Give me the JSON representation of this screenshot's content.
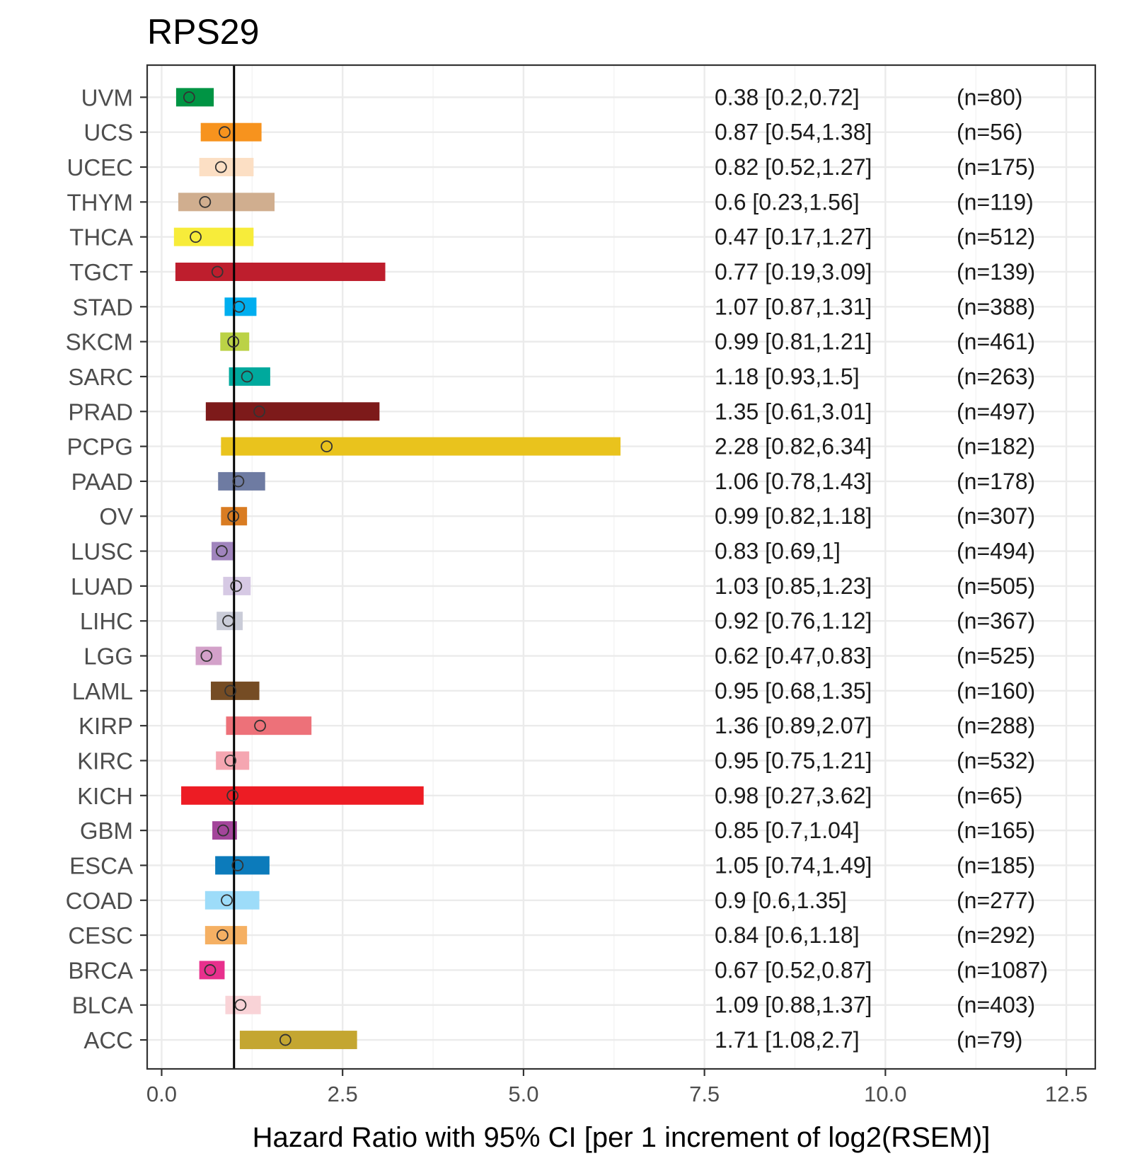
{
  "chart_data": {
    "type": "forest",
    "title": "RPS29",
    "xlabel": "Hazard Ratio with 95% CI [per 1 increment of log2(RSEM)]",
    "xlim": [
      -0.2,
      12.9
    ],
    "xticks": [
      0.0,
      2.5,
      5.0,
      7.5,
      10.0,
      12.5
    ],
    "xtick_labels": [
      "0.0",
      "2.5",
      "5.0",
      "7.5",
      "10.0",
      "12.5"
    ],
    "reference_line": 1,
    "grid": true,
    "rows": [
      {
        "category": "UVM",
        "hr": 0.38,
        "lower": 0.2,
        "upper": 0.72,
        "ci_text": "0.38 [0.2,0.72]",
        "n_text": "(n=80)",
        "color": "#009444"
      },
      {
        "category": "UCS",
        "hr": 0.87,
        "lower": 0.54,
        "upper": 1.38,
        "ci_text": "0.87 [0.54,1.38]",
        "n_text": "(n=56)",
        "color": "#F7931E"
      },
      {
        "category": "UCEC",
        "hr": 0.82,
        "lower": 0.52,
        "upper": 1.27,
        "ci_text": "0.82 [0.52,1.27]",
        "n_text": "(n=175)",
        "color": "#FCDFC4"
      },
      {
        "category": "THYM",
        "hr": 0.6,
        "lower": 0.23,
        "upper": 1.56,
        "ci_text": "0.6 [0.23,1.56]",
        "n_text": "(n=119)",
        "color": "#D0AE8F"
      },
      {
        "category": "THCA",
        "hr": 0.47,
        "lower": 0.17,
        "upper": 1.27,
        "ci_text": "0.47 [0.17,1.27]",
        "n_text": "(n=512)",
        "color": "#F7EC3A"
      },
      {
        "category": "TGCT",
        "hr": 0.77,
        "lower": 0.19,
        "upper": 3.09,
        "ci_text": "0.77 [0.19,3.09]",
        "n_text": "(n=139)",
        "color": "#BE1E2D"
      },
      {
        "category": "STAD",
        "hr": 1.07,
        "lower": 0.87,
        "upper": 1.31,
        "ci_text": "1.07 [0.87,1.31]",
        "n_text": "(n=388)",
        "color": "#00AEEF"
      },
      {
        "category": "SKCM",
        "hr": 0.99,
        "lower": 0.81,
        "upper": 1.21,
        "ci_text": "0.99 [0.81,1.21]",
        "n_text": "(n=461)",
        "color": "#BBD246"
      },
      {
        "category": "SARC",
        "hr": 1.18,
        "lower": 0.93,
        "upper": 1.5,
        "ci_text": "1.18 [0.93,1.5]",
        "n_text": "(n=263)",
        "color": "#00A99D"
      },
      {
        "category": "PRAD",
        "hr": 1.35,
        "lower": 0.61,
        "upper": 3.01,
        "ci_text": "1.35 [0.61,3.01]",
        "n_text": "(n=497)",
        "color": "#7D1A1A"
      },
      {
        "category": "PCPG",
        "hr": 2.28,
        "lower": 0.82,
        "upper": 6.34,
        "ci_text": "2.28 [0.82,6.34]",
        "n_text": "(n=182)",
        "color": "#E9C31D"
      },
      {
        "category": "PAAD",
        "hr": 1.06,
        "lower": 0.78,
        "upper": 1.43,
        "ci_text": "1.06 [0.78,1.43]",
        "n_text": "(n=178)",
        "color": "#6E7BA2"
      },
      {
        "category": "OV",
        "hr": 0.99,
        "lower": 0.82,
        "upper": 1.18,
        "ci_text": "0.99 [0.82,1.18]",
        "n_text": "(n=307)",
        "color": "#D97C22"
      },
      {
        "category": "LUSC",
        "hr": 0.83,
        "lower": 0.69,
        "upper": 1,
        "ci_text": "0.83 [0.69,1]",
        "n_text": "(n=494)",
        "color": "#A084BD"
      },
      {
        "category": "LUAD",
        "hr": 1.03,
        "lower": 0.85,
        "upper": 1.23,
        "ci_text": "1.03 [0.85,1.23]",
        "n_text": "(n=505)",
        "color": "#D6C9E4"
      },
      {
        "category": "LIHC",
        "hr": 0.92,
        "lower": 0.76,
        "upper": 1.12,
        "ci_text": "0.92 [0.76,1.12]",
        "n_text": "(n=367)",
        "color": "#CACCD8"
      },
      {
        "category": "LGG",
        "hr": 0.62,
        "lower": 0.47,
        "upper": 0.83,
        "ci_text": "0.62 [0.47,0.83]",
        "n_text": "(n=525)",
        "color": "#D3A1C9"
      },
      {
        "category": "LAML",
        "hr": 0.95,
        "lower": 0.68,
        "upper": 1.35,
        "ci_text": "0.95 [0.68,1.35]",
        "n_text": "(n=160)",
        "color": "#754C24"
      },
      {
        "category": "KIRP",
        "hr": 1.36,
        "lower": 0.89,
        "upper": 2.07,
        "ci_text": "1.36 [0.89,2.07]",
        "n_text": "(n=288)",
        "color": "#ED7179"
      },
      {
        "category": "KIRC",
        "hr": 0.95,
        "lower": 0.75,
        "upper": 1.21,
        "ci_text": "0.95 [0.75,1.21]",
        "n_text": "(n=532)",
        "color": "#F5A6B1"
      },
      {
        "category": "KICH",
        "hr": 0.98,
        "lower": 0.27,
        "upper": 3.62,
        "ci_text": "0.98 [0.27,3.62]",
        "n_text": "(n=65)",
        "color": "#ED1C24"
      },
      {
        "category": "GBM",
        "hr": 0.85,
        "lower": 0.7,
        "upper": 1.04,
        "ci_text": "0.85 [0.7,1.04]",
        "n_text": "(n=165)",
        "color": "#A3459A"
      },
      {
        "category": "ESCA",
        "hr": 1.05,
        "lower": 0.74,
        "upper": 1.49,
        "ci_text": "1.05 [0.74,1.49]",
        "n_text": "(n=185)",
        "color": "#0C7BBB"
      },
      {
        "category": "COAD",
        "hr": 0.9,
        "lower": 0.6,
        "upper": 1.35,
        "ci_text": "0.9 [0.6,1.35]",
        "n_text": "(n=277)",
        "color": "#9DDCF9"
      },
      {
        "category": "CESC",
        "hr": 0.84,
        "lower": 0.6,
        "upper": 1.18,
        "ci_text": "0.84 [0.6,1.18]",
        "n_text": "(n=292)",
        "color": "#F5B063"
      },
      {
        "category": "BRCA",
        "hr": 0.67,
        "lower": 0.52,
        "upper": 0.87,
        "ci_text": "0.67 [0.52,0.87]",
        "n_text": "(n=1087)",
        "color": "#E8308D"
      },
      {
        "category": "BLCA",
        "hr": 1.09,
        "lower": 0.88,
        "upper": 1.37,
        "ci_text": "1.09 [0.88,1.37]",
        "n_text": "(n=403)",
        "color": "#F9D3D7"
      },
      {
        "category": "ACC",
        "hr": 1.71,
        "lower": 1.08,
        "upper": 2.7,
        "ci_text": "1.71 [1.08,2.7]",
        "n_text": "(n=79)",
        "color": "#C4A631"
      }
    ]
  }
}
